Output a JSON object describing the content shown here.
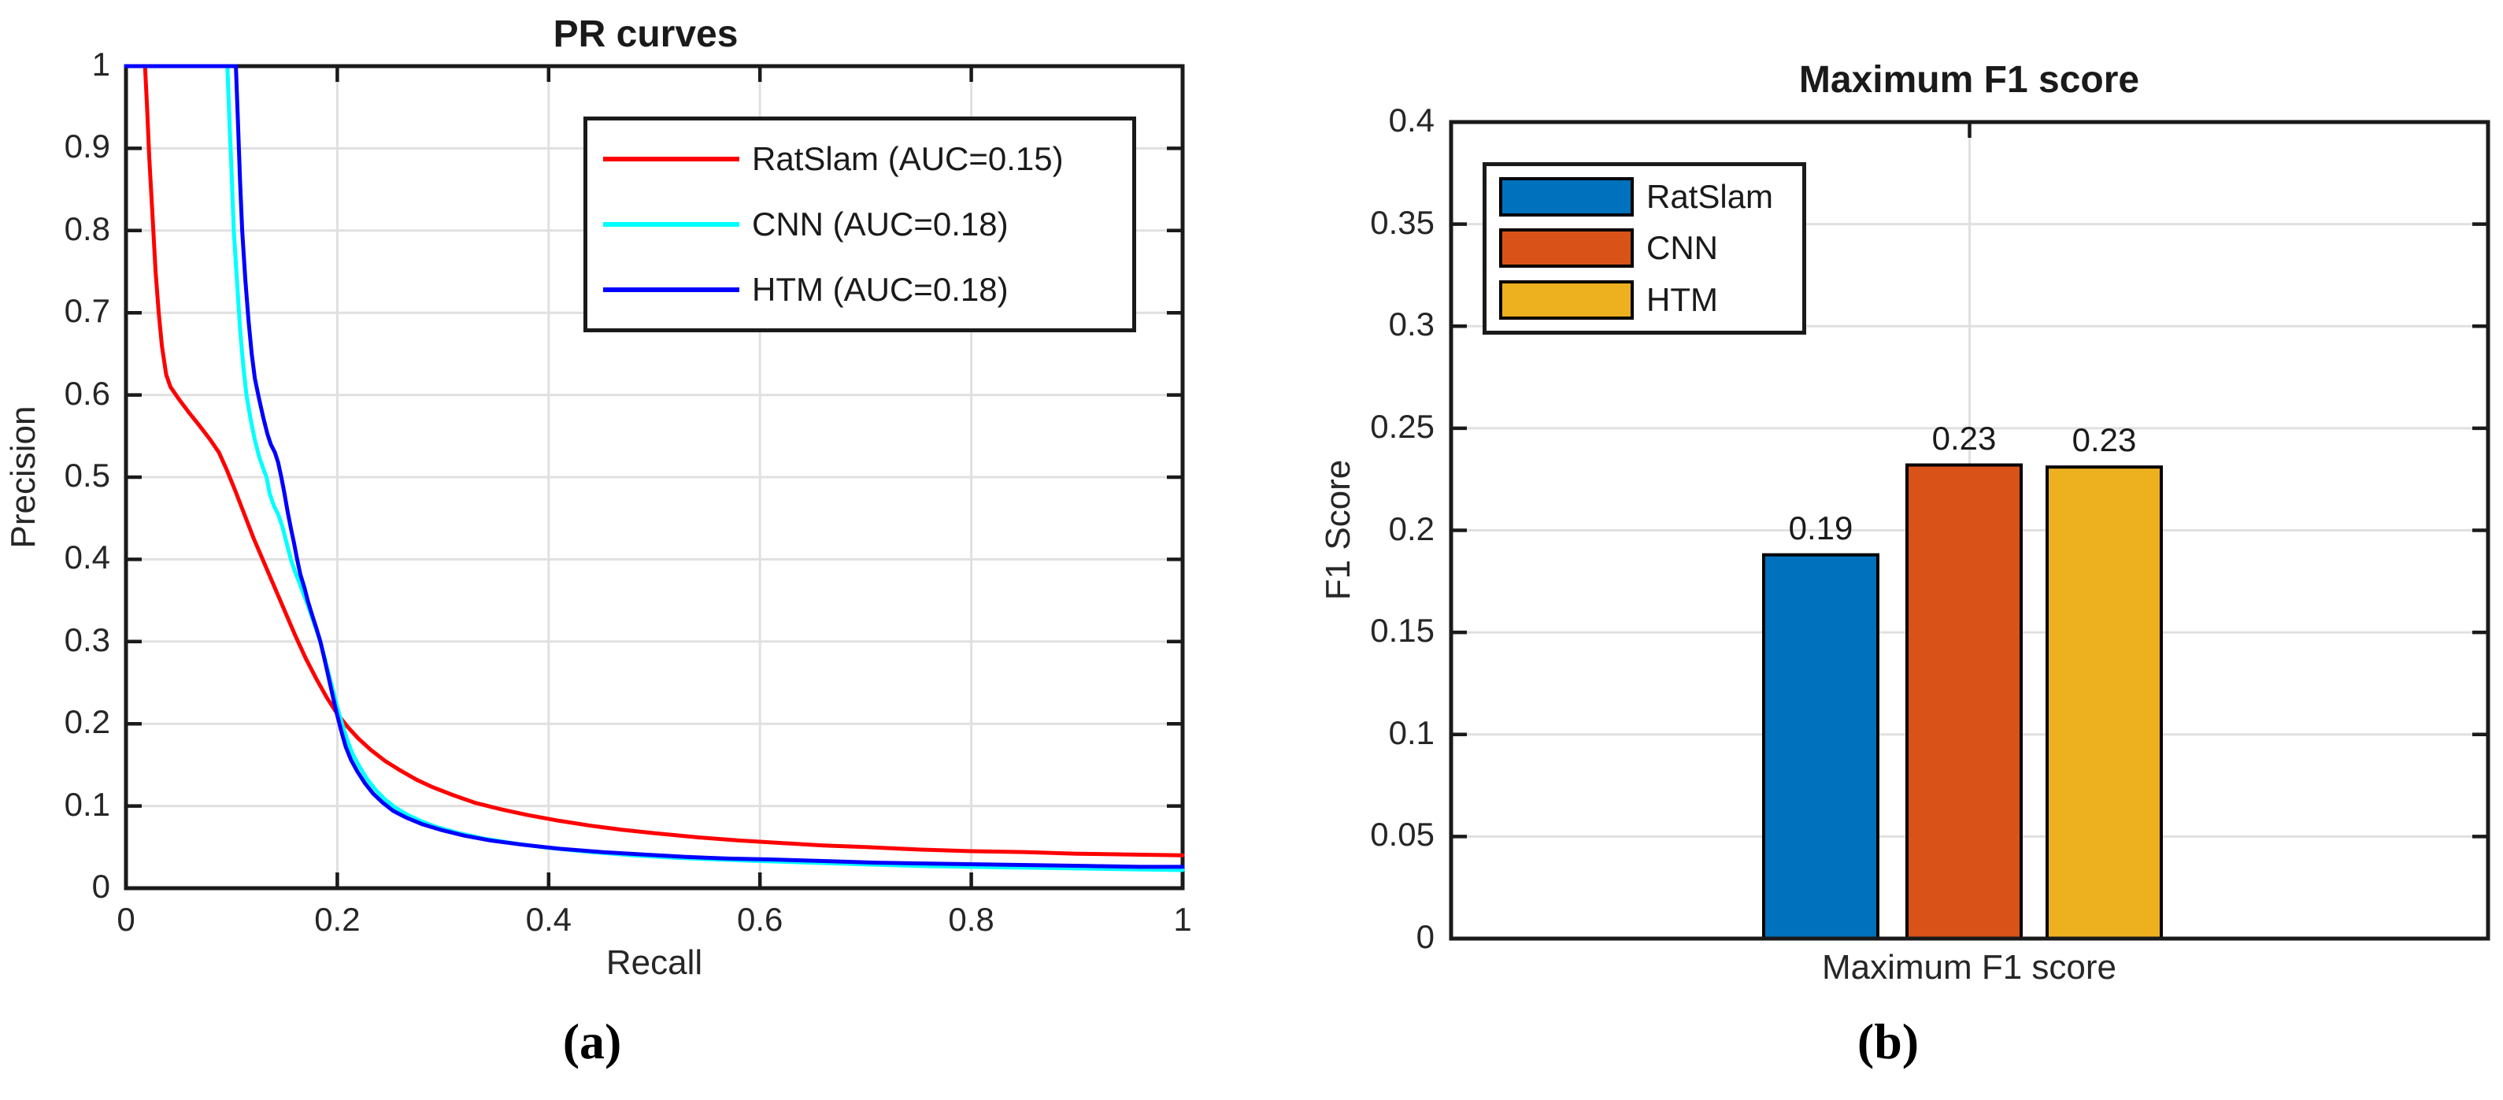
{
  "figure": {
    "caption_a": "(a)",
    "caption_b": "(b)",
    "background": "#ffffff"
  },
  "colors": {
    "axis": "#1a1a1a",
    "tick_label": "#262626",
    "grid": "#e0e0e0"
  },
  "chart_data": [
    {
      "type": "line",
      "title": "PR curves",
      "xlabel": "Recall",
      "ylabel": "Precision",
      "xlim": [
        0,
        1
      ],
      "ylim": [
        0,
        1
      ],
      "grid": true,
      "legend_position": "top-right-inside",
      "x_tick_values": [
        0,
        0.2,
        0.4,
        0.6,
        0.8,
        1
      ],
      "x_tick_labels": [
        "0",
        "0.2",
        "0.4",
        "0.6",
        "0.8",
        "1"
      ],
      "y_tick_values": [
        0,
        0.1,
        0.2,
        0.3,
        0.4,
        0.5,
        0.6,
        0.7,
        0.8,
        0.9,
        1
      ],
      "y_tick_labels": [
        "0",
        "0.1",
        "0.2",
        "0.3",
        "0.4",
        "0.5",
        "0.6",
        "0.7",
        "0.8",
        "0.9",
        "1"
      ],
      "series": [
        {
          "name": "RatSlam (AUC=0.15)",
          "color": "#ff0000",
          "points": [
            [
              0.0,
              1.0
            ],
            [
              0.018,
              1.0
            ],
            [
              0.02,
              0.95
            ],
            [
              0.022,
              0.89
            ],
            [
              0.025,
              0.82
            ],
            [
              0.028,
              0.75
            ],
            [
              0.031,
              0.7
            ],
            [
              0.034,
              0.66
            ],
            [
              0.038,
              0.625
            ],
            [
              0.042,
              0.61
            ],
            [
              0.05,
              0.595
            ],
            [
              0.06,
              0.578
            ],
            [
              0.07,
              0.562
            ],
            [
              0.08,
              0.545
            ],
            [
              0.088,
              0.53
            ],
            [
              0.095,
              0.51
            ],
            [
              0.103,
              0.485
            ],
            [
              0.112,
              0.455
            ],
            [
              0.121,
              0.425
            ],
            [
              0.13,
              0.398
            ],
            [
              0.14,
              0.368
            ],
            [
              0.15,
              0.338
            ],
            [
              0.16,
              0.308
            ],
            [
              0.17,
              0.28
            ],
            [
              0.18,
              0.255
            ],
            [
              0.19,
              0.232
            ],
            [
              0.2,
              0.212
            ],
            [
              0.21,
              0.196
            ],
            [
              0.22,
              0.182
            ],
            [
              0.232,
              0.168
            ],
            [
              0.245,
              0.155
            ],
            [
              0.26,
              0.143
            ],
            [
              0.275,
              0.132
            ],
            [
              0.29,
              0.123
            ],
            [
              0.31,
              0.113
            ],
            [
              0.33,
              0.104
            ],
            [
              0.355,
              0.096
            ],
            [
              0.38,
              0.089
            ],
            [
              0.41,
              0.082
            ],
            [
              0.44,
              0.076
            ],
            [
              0.47,
              0.071
            ],
            [
              0.5,
              0.067
            ],
            [
              0.54,
              0.062
            ],
            [
              0.58,
              0.058
            ],
            [
              0.62,
              0.055
            ],
            [
              0.66,
              0.052
            ],
            [
              0.7,
              0.05
            ],
            [
              0.75,
              0.047
            ],
            [
              0.8,
              0.045
            ],
            [
              0.85,
              0.044
            ],
            [
              0.9,
              0.042
            ],
            [
              0.95,
              0.041
            ],
            [
              1.0,
              0.04
            ]
          ]
        },
        {
          "name": "CNN (AUC=0.18)",
          "color": "#00ffff",
          "points": [
            [
              0.0,
              1.0
            ],
            [
              0.096,
              1.0
            ],
            [
              0.098,
              0.93
            ],
            [
              0.1,
              0.87
            ],
            [
              0.102,
              0.8
            ],
            [
              0.105,
              0.74
            ],
            [
              0.108,
              0.68
            ],
            [
              0.111,
              0.635
            ],
            [
              0.114,
              0.6
            ],
            [
              0.118,
              0.57
            ],
            [
              0.122,
              0.545
            ],
            [
              0.126,
              0.525
            ],
            [
              0.13,
              0.51
            ],
            [
              0.133,
              0.5
            ],
            [
              0.136,
              0.48
            ],
            [
              0.14,
              0.465
            ],
            [
              0.144,
              0.455
            ],
            [
              0.148,
              0.44
            ],
            [
              0.152,
              0.42
            ],
            [
              0.156,
              0.4
            ],
            [
              0.16,
              0.385
            ],
            [
              0.164,
              0.372
            ],
            [
              0.168,
              0.358
            ],
            [
              0.172,
              0.345
            ],
            [
              0.176,
              0.33
            ],
            [
              0.18,
              0.315
            ],
            [
              0.184,
              0.3
            ],
            [
              0.188,
              0.28
            ],
            [
              0.192,
              0.26
            ],
            [
              0.196,
              0.24
            ],
            [
              0.2,
              0.22
            ],
            [
              0.205,
              0.198
            ],
            [
              0.21,
              0.178
            ],
            [
              0.215,
              0.162
            ],
            [
              0.221,
              0.148
            ],
            [
              0.228,
              0.133
            ],
            [
              0.236,
              0.12
            ],
            [
              0.245,
              0.108
            ],
            [
              0.255,
              0.098
            ],
            [
              0.267,
              0.089
            ],
            [
              0.28,
              0.081
            ],
            [
              0.295,
              0.074
            ],
            [
              0.315,
              0.067
            ],
            [
              0.34,
              0.06
            ],
            [
              0.37,
              0.054
            ],
            [
              0.4,
              0.049
            ],
            [
              0.44,
              0.044
            ],
            [
              0.48,
              0.04
            ],
            [
              0.52,
              0.037
            ],
            [
              0.56,
              0.035
            ],
            [
              0.6,
              0.033
            ],
            [
              0.65,
              0.031
            ],
            [
              0.7,
              0.029
            ],
            [
              0.75,
              0.027
            ],
            [
              0.8,
              0.026
            ],
            [
              0.85,
              0.025
            ],
            [
              0.9,
              0.024
            ],
            [
              0.95,
              0.023
            ],
            [
              1.0,
              0.022
            ]
          ]
        },
        {
          "name": "HTM (AUC=0.18)",
          "color": "#0000ff",
          "points": [
            [
              0.0,
              1.0
            ],
            [
              0.104,
              1.0
            ],
            [
              0.106,
              0.93
            ],
            [
              0.108,
              0.86
            ],
            [
              0.11,
              0.8
            ],
            [
              0.113,
              0.74
            ],
            [
              0.116,
              0.69
            ],
            [
              0.119,
              0.65
            ],
            [
              0.122,
              0.62
            ],
            [
              0.126,
              0.595
            ],
            [
              0.13,
              0.572
            ],
            [
              0.134,
              0.552
            ],
            [
              0.137,
              0.54
            ],
            [
              0.141,
              0.53
            ],
            [
              0.144,
              0.518
            ],
            [
              0.147,
              0.5
            ],
            [
              0.15,
              0.48
            ],
            [
              0.153,
              0.458
            ],
            [
              0.156,
              0.438
            ],
            [
              0.159,
              0.42
            ],
            [
              0.162,
              0.4
            ],
            [
              0.165,
              0.382
            ],
            [
              0.169,
              0.365
            ],
            [
              0.172,
              0.35
            ],
            [
              0.176,
              0.333
            ],
            [
              0.18,
              0.317
            ],
            [
              0.184,
              0.3
            ],
            [
              0.188,
              0.278
            ],
            [
              0.192,
              0.255
            ],
            [
              0.196,
              0.232
            ],
            [
              0.2,
              0.21
            ],
            [
              0.204,
              0.19
            ],
            [
              0.208,
              0.172
            ],
            [
              0.213,
              0.156
            ],
            [
              0.219,
              0.142
            ],
            [
              0.226,
              0.128
            ],
            [
              0.234,
              0.115
            ],
            [
              0.243,
              0.104
            ],
            [
              0.253,
              0.094
            ],
            [
              0.265,
              0.086
            ],
            [
              0.28,
              0.078
            ],
            [
              0.298,
              0.071
            ],
            [
              0.32,
              0.064
            ],
            [
              0.345,
              0.058
            ],
            [
              0.375,
              0.053
            ],
            [
              0.41,
              0.048
            ],
            [
              0.45,
              0.044
            ],
            [
              0.49,
              0.041
            ],
            [
              0.53,
              0.038
            ],
            [
              0.57,
              0.036
            ],
            [
              0.61,
              0.035
            ],
            [
              0.66,
              0.033
            ],
            [
              0.71,
              0.031
            ],
            [
              0.76,
              0.03
            ],
            [
              0.81,
              0.029
            ],
            [
              0.86,
              0.028
            ],
            [
              0.91,
              0.027
            ],
            [
              0.96,
              0.026
            ],
            [
              1.0,
              0.026
            ]
          ]
        }
      ]
    },
    {
      "type": "bar",
      "title": "Maximum F1 score",
      "ylabel": "F1 Score",
      "categories": [
        "Maximum F1 score"
      ],
      "ylim": [
        0,
        0.4
      ],
      "grid": true,
      "legend_position": "top-left-inside",
      "y_tick_values": [
        0,
        0.05,
        0.1,
        0.15,
        0.2,
        0.25,
        0.3,
        0.35,
        0.4
      ],
      "y_tick_labels": [
        "0",
        "0.05",
        "0.1",
        "0.15",
        "0.2",
        "0.25",
        "0.3",
        "0.35",
        "0.4"
      ],
      "series": [
        {
          "name": "RatSlam",
          "color": "#0072bd",
          "value": 0.188,
          "label": "0.19"
        },
        {
          "name": "CNN",
          "color": "#d95319",
          "value": 0.232,
          "label": "0.23"
        },
        {
          "name": "HTM",
          "color": "#edb120",
          "value": 0.231,
          "label": "0.23"
        }
      ]
    }
  ]
}
